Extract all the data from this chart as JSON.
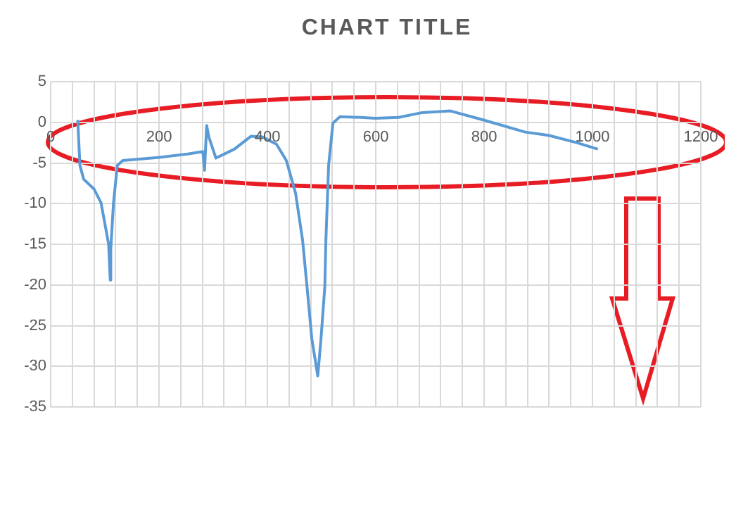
{
  "chart_data": {
    "type": "line",
    "title": "CHART TITLE",
    "x": [
      50,
      54,
      61,
      80,
      93,
      101,
      107,
      110,
      111,
      116,
      123,
      133,
      201,
      253,
      281,
      284,
      288,
      292,
      305,
      339,
      370,
      391,
      417,
      435,
      452,
      465,
      474,
      482,
      493,
      499,
      506,
      508,
      513,
      521,
      534,
      573,
      599,
      642,
      686,
      738,
      798,
      876,
      919,
      971,
      1010
    ],
    "series": [
      {
        "color": "#5b9bd5",
        "values": [
          0.3,
          -5.3,
          -7,
          -8.2,
          -9.9,
          -12.8,
          -15,
          -19.4,
          -15.5,
          -9.9,
          -5.3,
          -4.7,
          -4.3,
          -3.9,
          -3.6,
          -5.9,
          -0.4,
          -1.8,
          -4.4,
          -3.3,
          -1.7,
          -1.8,
          -2.7,
          -4.7,
          -8.7,
          -14.5,
          -20.8,
          -26.6,
          -31.2,
          -26.6,
          -20.2,
          -14.5,
          -5.3,
          -0.1,
          0.7,
          0.6,
          0.5,
          0.6,
          1.2,
          1.4,
          0.3,
          -1.2,
          -1.6,
          -2.5,
          -3.3
        ]
      }
    ],
    "xlim": [
      0,
      1200
    ],
    "xticks": [
      0,
      {
        "value": 40,
        "label": null
      },
      {
        "value": 80,
        "label": null
      },
      {
        "value": 120,
        "label": null
      },
      {
        "value": 160,
        "label": null
      },
      200,
      {
        "value": 240,
        "label": null
      },
      {
        "value": 280,
        "label": null
      },
      {
        "value": 320,
        "label": null
      },
      {
        "value": 360,
        "label": null
      },
      400,
      {
        "value": 440,
        "label": null
      },
      {
        "value": 480,
        "label": null
      },
      {
        "value": 520,
        "label": null
      },
      {
        "value": 560,
        "label": null
      },
      600,
      {
        "value": 640,
        "label": null
      },
      {
        "value": 680,
        "label": null
      },
      {
        "value": 720,
        "label": null
      },
      {
        "value": 760,
        "label": null
      },
      800,
      {
        "value": 840,
        "label": null
      },
      {
        "value": 880,
        "label": null
      },
      {
        "value": 920,
        "label": null
      },
      {
        "value": 960,
        "label": null
      },
      1000,
      {
        "value": 1040,
        "label": null
      },
      {
        "value": 1080,
        "label": null
      },
      {
        "value": 1120,
        "label": null
      },
      {
        "value": 1160,
        "label": null
      },
      1200
    ],
    "ylim": [
      -35,
      5
    ],
    "yticks": [
      -35,
      -30,
      -25,
      -20,
      -15,
      -10,
      -5,
      0,
      5
    ],
    "grid": true,
    "legend": false,
    "marker": "none",
    "line_style": "solid"
  }
}
